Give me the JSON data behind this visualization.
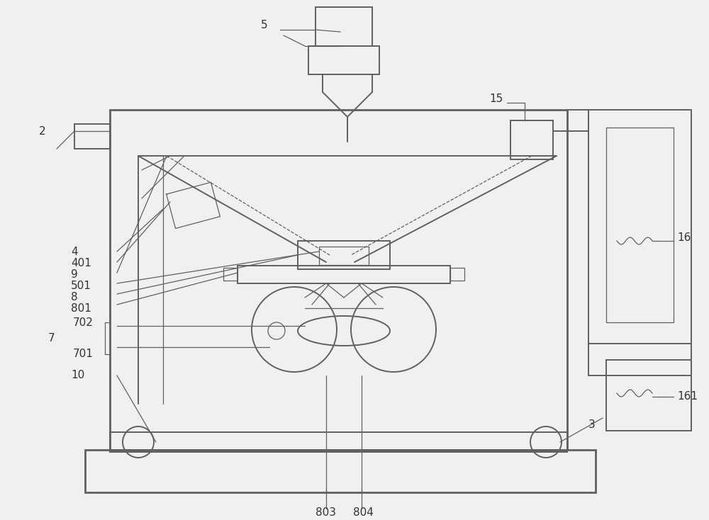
{
  "bg_color": "#f0f0f0",
  "line_color": "#606060",
  "lw": 1.4,
  "lw_thin": 0.9,
  "lw_thick": 2.0
}
